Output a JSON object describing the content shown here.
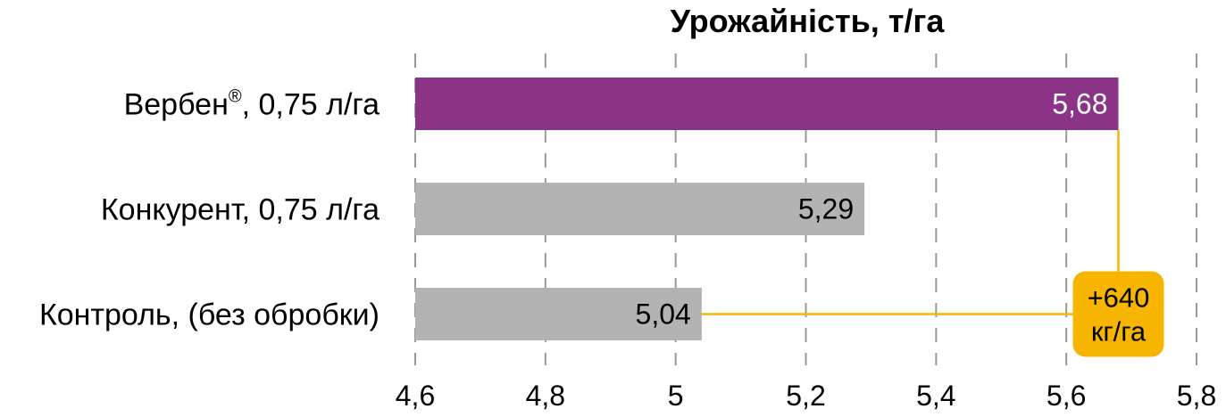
{
  "chart_data": {
    "type": "bar",
    "orientation": "horizontal",
    "title": "Урожайність, т/га",
    "categories": [
      {
        "label": "Вербен",
        "sup": "®",
        "suffix": ", 0,75 л/га"
      },
      {
        "label": "Конкурент, 0,75 л/га",
        "sup": "",
        "suffix": ""
      },
      {
        "label": "Контроль, (без обробки)",
        "sup": "",
        "suffix": ""
      }
    ],
    "values": [
      5.68,
      5.29,
      5.04
    ],
    "value_labels": [
      "5,68",
      "5,29",
      "5,04"
    ],
    "xlim": [
      4.6,
      5.8
    ],
    "xticks": [
      4.6,
      4.8,
      5.0,
      5.2,
      5.4,
      5.6,
      5.8
    ],
    "xtick_labels": [
      "4,6",
      "4,8",
      "5",
      "5,2",
      "5,4",
      "5,6",
      "5,8"
    ],
    "grid": "vertical-dashed",
    "bar_colors": [
      "#8B3386",
      "#B3B3B3",
      "#B3B3B3"
    ],
    "label_colors": [
      "#ffffff",
      "#000000",
      "#000000"
    ],
    "callout": {
      "line1": "+640",
      "line2": "кг/га",
      "color": "#F7B500",
      "from_category": 2,
      "to_category": 0
    }
  }
}
